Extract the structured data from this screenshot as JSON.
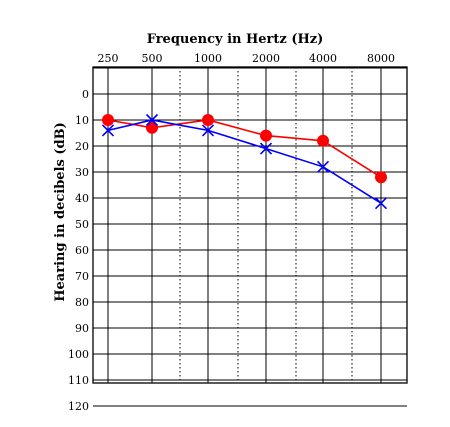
{
  "chart_data": {
    "type": "line",
    "title": "Frequency in Hertz (Hz)",
    "xlabel": "Frequency in Hertz (Hz)",
    "ylabel": "Hearing in decibels (dB)",
    "x_scale": "log",
    "y_inverted": true,
    "x": [
      "250",
      "500",
      "1000",
      "2000",
      "4000",
      "8000"
    ],
    "y_ticks": [
      "0",
      "10",
      "20",
      "30",
      "40",
      "50",
      "60",
      "70",
      "80",
      "90",
      "100",
      "110",
      "120"
    ],
    "ylim": [
      -10,
      120
    ],
    "grid": true,
    "series": [
      {
        "marker": "circle",
        "color": "#ff0000",
        "values": [
          10,
          13,
          10,
          16,
          18,
          32
        ]
      },
      {
        "marker": "x",
        "color": "#0000ff",
        "values": [
          14,
          10,
          14,
          21,
          28,
          42
        ]
      }
    ]
  }
}
